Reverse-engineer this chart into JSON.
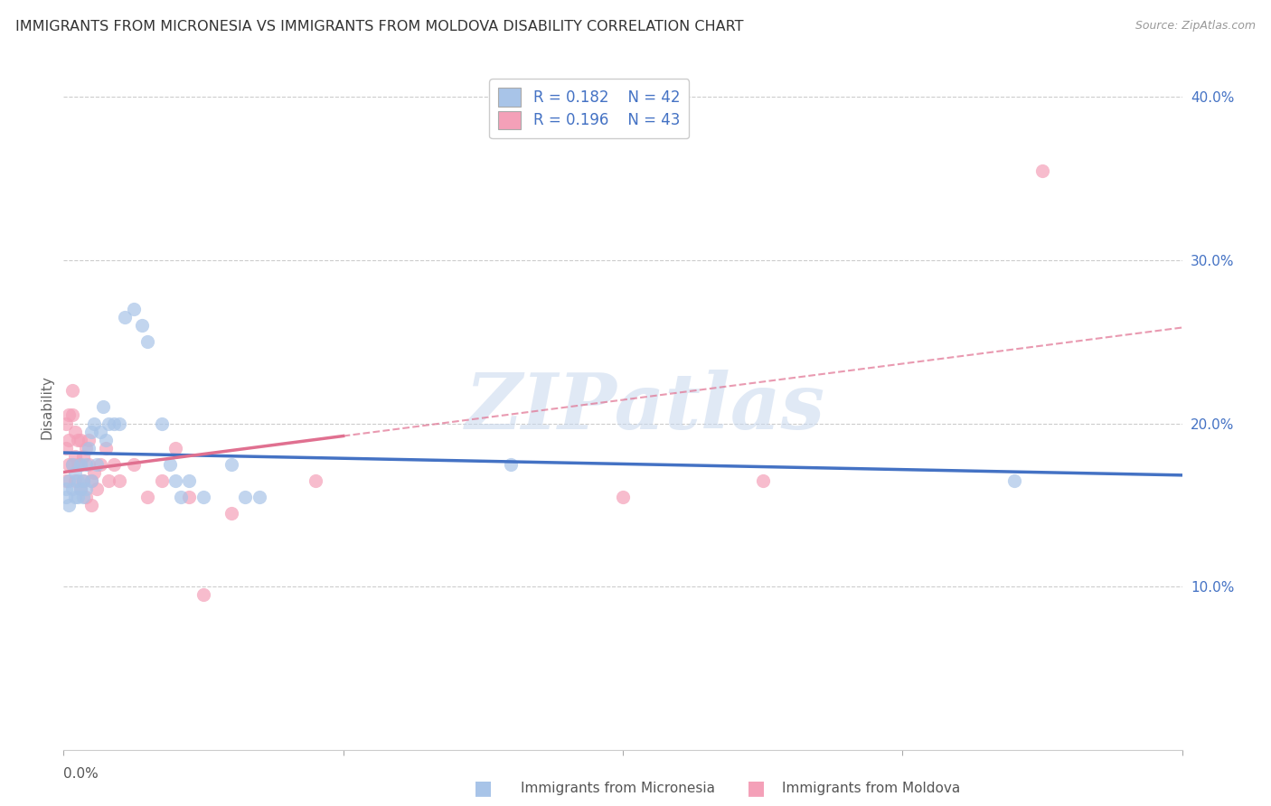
{
  "title": "IMMIGRANTS FROM MICRONESIA VS IMMIGRANTS FROM MOLDOVA DISABILITY CORRELATION CHART",
  "source": "Source: ZipAtlas.com",
  "ylabel": "Disability",
  "watermark": "ZIPatlas",
  "legend_r1": "R = 0.182",
  "legend_n1": "N = 42",
  "legend_r2": "R = 0.196",
  "legend_n2": "N = 43",
  "micronesia_color": "#a8c4e8",
  "moldova_color": "#f4a0b8",
  "micronesia_line_color": "#4472c4",
  "moldova_line_color": "#e07090",
  "xlim": [
    0.0,
    0.4
  ],
  "ylim": [
    0.0,
    0.42
  ],
  "micronesia_x": [
    0.001,
    0.001,
    0.002,
    0.002,
    0.003,
    0.003,
    0.004,
    0.004,
    0.005,
    0.005,
    0.006,
    0.006,
    0.007,
    0.007,
    0.008,
    0.008,
    0.009,
    0.01,
    0.01,
    0.011,
    0.012,
    0.013,
    0.014,
    0.015,
    0.016,
    0.018,
    0.02,
    0.022,
    0.025,
    0.028,
    0.03,
    0.035,
    0.038,
    0.04,
    0.042,
    0.045,
    0.05,
    0.06,
    0.065,
    0.07,
    0.16,
    0.34
  ],
  "micronesia_y": [
    0.16,
    0.155,
    0.165,
    0.15,
    0.175,
    0.16,
    0.17,
    0.155,
    0.165,
    0.155,
    0.175,
    0.16,
    0.165,
    0.155,
    0.175,
    0.16,
    0.185,
    0.195,
    0.165,
    0.2,
    0.175,
    0.195,
    0.21,
    0.19,
    0.2,
    0.2,
    0.2,
    0.265,
    0.27,
    0.26,
    0.25,
    0.2,
    0.175,
    0.165,
    0.155,
    0.165,
    0.155,
    0.175,
    0.155,
    0.155,
    0.175,
    0.165
  ],
  "moldova_x": [
    0.001,
    0.001,
    0.001,
    0.002,
    0.002,
    0.002,
    0.003,
    0.003,
    0.003,
    0.004,
    0.004,
    0.004,
    0.005,
    0.005,
    0.006,
    0.006,
    0.006,
    0.007,
    0.007,
    0.008,
    0.008,
    0.009,
    0.009,
    0.01,
    0.01,
    0.011,
    0.012,
    0.013,
    0.015,
    0.016,
    0.018,
    0.02,
    0.025,
    0.03,
    0.035,
    0.04,
    0.045,
    0.05,
    0.06,
    0.09,
    0.2,
    0.25,
    0.35
  ],
  "moldova_y": [
    0.2,
    0.185,
    0.165,
    0.205,
    0.19,
    0.175,
    0.22,
    0.205,
    0.175,
    0.195,
    0.18,
    0.165,
    0.19,
    0.175,
    0.19,
    0.175,
    0.16,
    0.18,
    0.165,
    0.185,
    0.155,
    0.19,
    0.175,
    0.165,
    0.15,
    0.17,
    0.16,
    0.175,
    0.185,
    0.165,
    0.175,
    0.165,
    0.175,
    0.155,
    0.165,
    0.185,
    0.155,
    0.095,
    0.145,
    0.165,
    0.155,
    0.165,
    0.355
  ],
  "ytick_positions": [
    0.1,
    0.2,
    0.3,
    0.4
  ],
  "ytick_labels": [
    "10.0%",
    "20.0%",
    "30.0%",
    "40.0%"
  ]
}
